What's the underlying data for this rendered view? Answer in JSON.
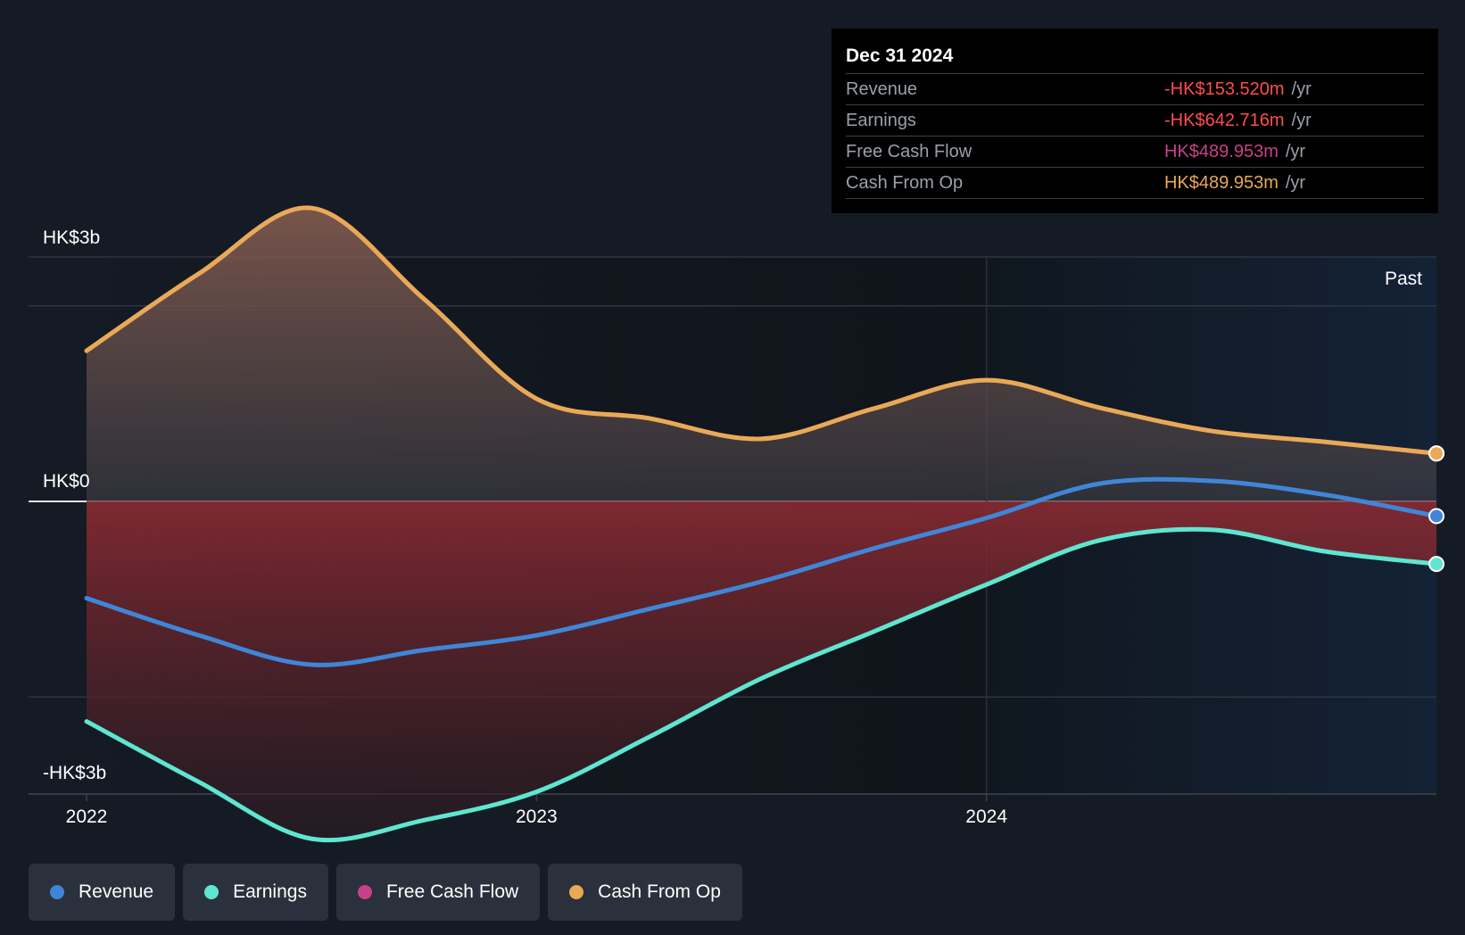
{
  "colors": {
    "revenue": "#3f86d8",
    "earnings": "#5ee6d0",
    "free_cash_flow": "#c9408a",
    "cash_from_op": "#e8aa55",
    "negative_value": "#ff4d4d"
  },
  "tooltip": {
    "date": "Dec 31 2024",
    "rows": [
      {
        "label": "Revenue",
        "value": "-HK$153.520m",
        "unit": "/yr"
      },
      {
        "label": "Earnings",
        "value": "-HK$642.716m",
        "unit": "/yr"
      },
      {
        "label": "Free Cash Flow",
        "value": "HK$489.953m",
        "unit": "/yr"
      },
      {
        "label": "Cash From Op",
        "value": "HK$489.953m",
        "unit": "/yr"
      }
    ]
  },
  "legend": [
    {
      "label": "Revenue",
      "color_key": "revenue"
    },
    {
      "label": "Earnings",
      "color_key": "earnings"
    },
    {
      "label": "Free Cash Flow",
      "color_key": "free_cash_flow"
    },
    {
      "label": "Cash From Op",
      "color_key": "cash_from_op"
    }
  ],
  "chart_data": {
    "type": "line",
    "title": "",
    "xlabel": "",
    "ylabel": "",
    "y_tick_labels": [
      "HK$3b",
      "HK$0",
      "-HK$3b"
    ],
    "x_tick_labels": [
      "2022",
      "2023",
      "2024"
    ],
    "ylim": [
      -3.0,
      3.0
    ],
    "x_range": [
      2022.0,
      2025.0
    ],
    "past_label": "Past",
    "past_region_start": 2024.0,
    "grid": true,
    "legend_position": "bottom-left",
    "series": [
      {
        "name": "Revenue",
        "color_key": "revenue",
        "x": [
          2022.0,
          2022.25,
          2022.5,
          2022.75,
          2023.0,
          2023.25,
          2023.5,
          2023.75,
          2024.0,
          2024.25,
          2024.5,
          2024.75,
          2025.0
        ],
        "y": [
          -0.99,
          -1.37,
          -1.67,
          -1.52,
          -1.37,
          -1.1,
          -0.82,
          -0.48,
          -0.17,
          0.18,
          0.21,
          0.07,
          -0.15
        ]
      },
      {
        "name": "Earnings",
        "color_key": "earnings",
        "x": [
          2022.0,
          2022.25,
          2022.5,
          2022.75,
          2023.0,
          2023.25,
          2023.5,
          2023.75,
          2024.0,
          2024.25,
          2024.5,
          2024.75,
          2025.0
        ],
        "y": [
          -2.25,
          -2.87,
          -3.45,
          -3.26,
          -2.97,
          -2.41,
          -1.81,
          -1.33,
          -0.85,
          -0.4,
          -0.29,
          -0.51,
          -0.64
        ]
      },
      {
        "name": "Free Cash Flow",
        "color_key": "free_cash_flow",
        "x": [
          2022.0,
          2022.25,
          2022.5,
          2022.75,
          2023.0,
          2023.25,
          2023.5,
          2023.75,
          2024.0,
          2024.25,
          2024.5,
          2024.75,
          2025.0
        ],
        "y": [
          1.54,
          2.33,
          3.0,
          2.07,
          1.05,
          0.85,
          0.64,
          0.95,
          1.24,
          0.96,
          0.72,
          0.61,
          0.49
        ]
      },
      {
        "name": "Cash From Op",
        "color_key": "cash_from_op",
        "x": [
          2022.0,
          2022.25,
          2022.5,
          2022.75,
          2023.0,
          2023.25,
          2023.5,
          2023.75,
          2024.0,
          2024.25,
          2024.5,
          2024.75,
          2025.0
        ],
        "y": [
          1.54,
          2.33,
          3.0,
          2.07,
          1.05,
          0.85,
          0.64,
          0.95,
          1.24,
          0.96,
          0.72,
          0.61,
          0.49
        ]
      }
    ]
  }
}
